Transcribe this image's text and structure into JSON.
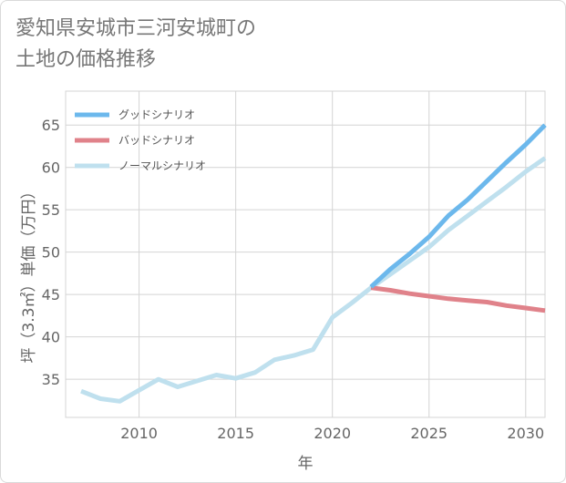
{
  "chart_data": {
    "type": "line",
    "title_lines": [
      "愛知県安城市三河安城町の",
      "土地の価格推移"
    ],
    "xlabel": "年",
    "ylabel": "坪（3.3㎡）単価（万円）",
    "xlim": [
      2006.2,
      2031
    ],
    "ylim": [
      30.5,
      69
    ],
    "x_ticks": [
      "2010",
      "2015",
      "2020",
      "2025",
      "2030"
    ],
    "y_ticks": [
      "35",
      "40",
      "45",
      "50",
      "55",
      "60",
      "65"
    ],
    "grid": true,
    "legend_position": "top-left",
    "series": [
      {
        "name": "グッドシナリオ",
        "color": "#6cb8ec",
        "x": [
          2022,
          2023,
          2024,
          2025,
          2026,
          2027,
          2028,
          2029,
          2030,
          2031
        ],
        "y": [
          45.9,
          48.0,
          49.8,
          51.8,
          54.3,
          56.2,
          58.4,
          60.6,
          62.7,
          65.0
        ]
      },
      {
        "name": "バッドシナリオ",
        "color": "#e0828a",
        "x": [
          2022,
          2023,
          2024,
          2025,
          2026,
          2027,
          2028,
          2029,
          2030,
          2031
        ],
        "y": [
          45.8,
          45.5,
          45.1,
          44.8,
          44.5,
          44.3,
          44.1,
          43.7,
          43.4,
          43.1
        ]
      },
      {
        "name": "ノーマルシナリオ",
        "color": "#bfe0ee",
        "x": [
          2007,
          2008,
          2009,
          2010,
          2011,
          2012,
          2013,
          2014,
          2015,
          2016,
          2017,
          2018,
          2019,
          2020,
          2021,
          2022,
          2023,
          2024,
          2025,
          2026,
          2027,
          2028,
          2029,
          2030,
          2031
        ],
        "y": [
          33.6,
          32.7,
          32.4,
          33.7,
          35.0,
          34.1,
          34.8,
          35.5,
          35.1,
          35.8,
          37.3,
          37.8,
          38.5,
          42.3,
          44.0,
          45.8,
          47.4,
          49.0,
          50.6,
          52.6,
          54.3,
          56.0,
          57.7,
          59.5,
          61.1
        ]
      }
    ]
  }
}
